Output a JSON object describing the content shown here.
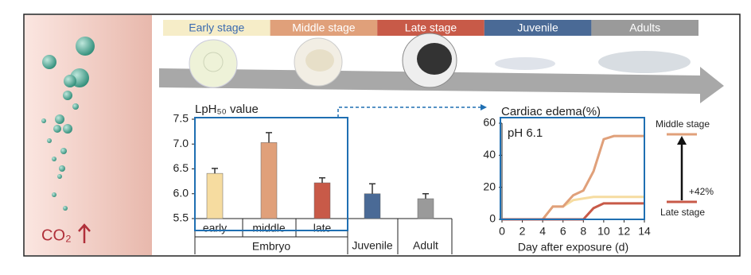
{
  "stages": [
    "Early stage",
    "Middle stage",
    "Late stage",
    "Juvenile",
    "Adults"
  ],
  "co2_label": "CO₂",
  "chart_data": [
    {
      "type": "bar",
      "title": "LpH₅₀ value",
      "categories": [
        "early",
        "middle",
        "late",
        "Juvenile",
        "Adult"
      ],
      "group_label": "Embryo",
      "values": [
        6.41,
        7.03,
        6.22,
        6.0,
        5.9
      ],
      "errors": [
        0.1,
        0.2,
        0.1,
        0.2,
        0.1
      ],
      "colors": [
        "#f6dca0",
        "#e0a07a",
        "#c85a48",
        "#4a6a96",
        "#9a9a9a"
      ],
      "ylim": [
        5.5,
        7.5
      ],
      "yticks": [
        5.5,
        {
          "value": 6,
          "label": "6.0"
        },
        6.5,
        {
          "value": 7,
          "label": "7.0"
        },
        7.5
      ]
    },
    {
      "type": "line",
      "title": "Cardiac edema(%)",
      "annotation": "pH 6.1",
      "xlabel": "Day after exposure (d)",
      "x": [
        0,
        1,
        2,
        3,
        4,
        5,
        6,
        7,
        8,
        9,
        10,
        11,
        12,
        13,
        14
      ],
      "series": [
        {
          "color": "#f6dca0",
          "values": [
            0,
            0,
            0,
            0,
            0,
            8,
            8,
            12,
            13,
            14,
            14,
            14,
            14,
            14,
            14
          ]
        },
        {
          "color": "#e0a07a",
          "values": [
            0,
            0,
            0,
            0,
            0,
            8,
            8,
            15,
            18,
            30,
            50,
            52,
            52,
            52,
            52
          ]
        },
        {
          "color": "#c85a48",
          "values": [
            0,
            0,
            0,
            0,
            0,
            0,
            0,
            0,
            0,
            7,
            10,
            10,
            10,
            10,
            10
          ]
        }
      ],
      "xlim": [
        0,
        14
      ],
      "xticks": [
        0,
        2,
        4,
        6,
        8,
        10,
        12,
        14
      ],
      "ylim": [
        0,
        60
      ],
      "yticks": [
        0,
        20,
        40,
        60
      ],
      "annotations": [
        "Middle stage",
        "Late stage",
        "+42%"
      ]
    }
  ]
}
